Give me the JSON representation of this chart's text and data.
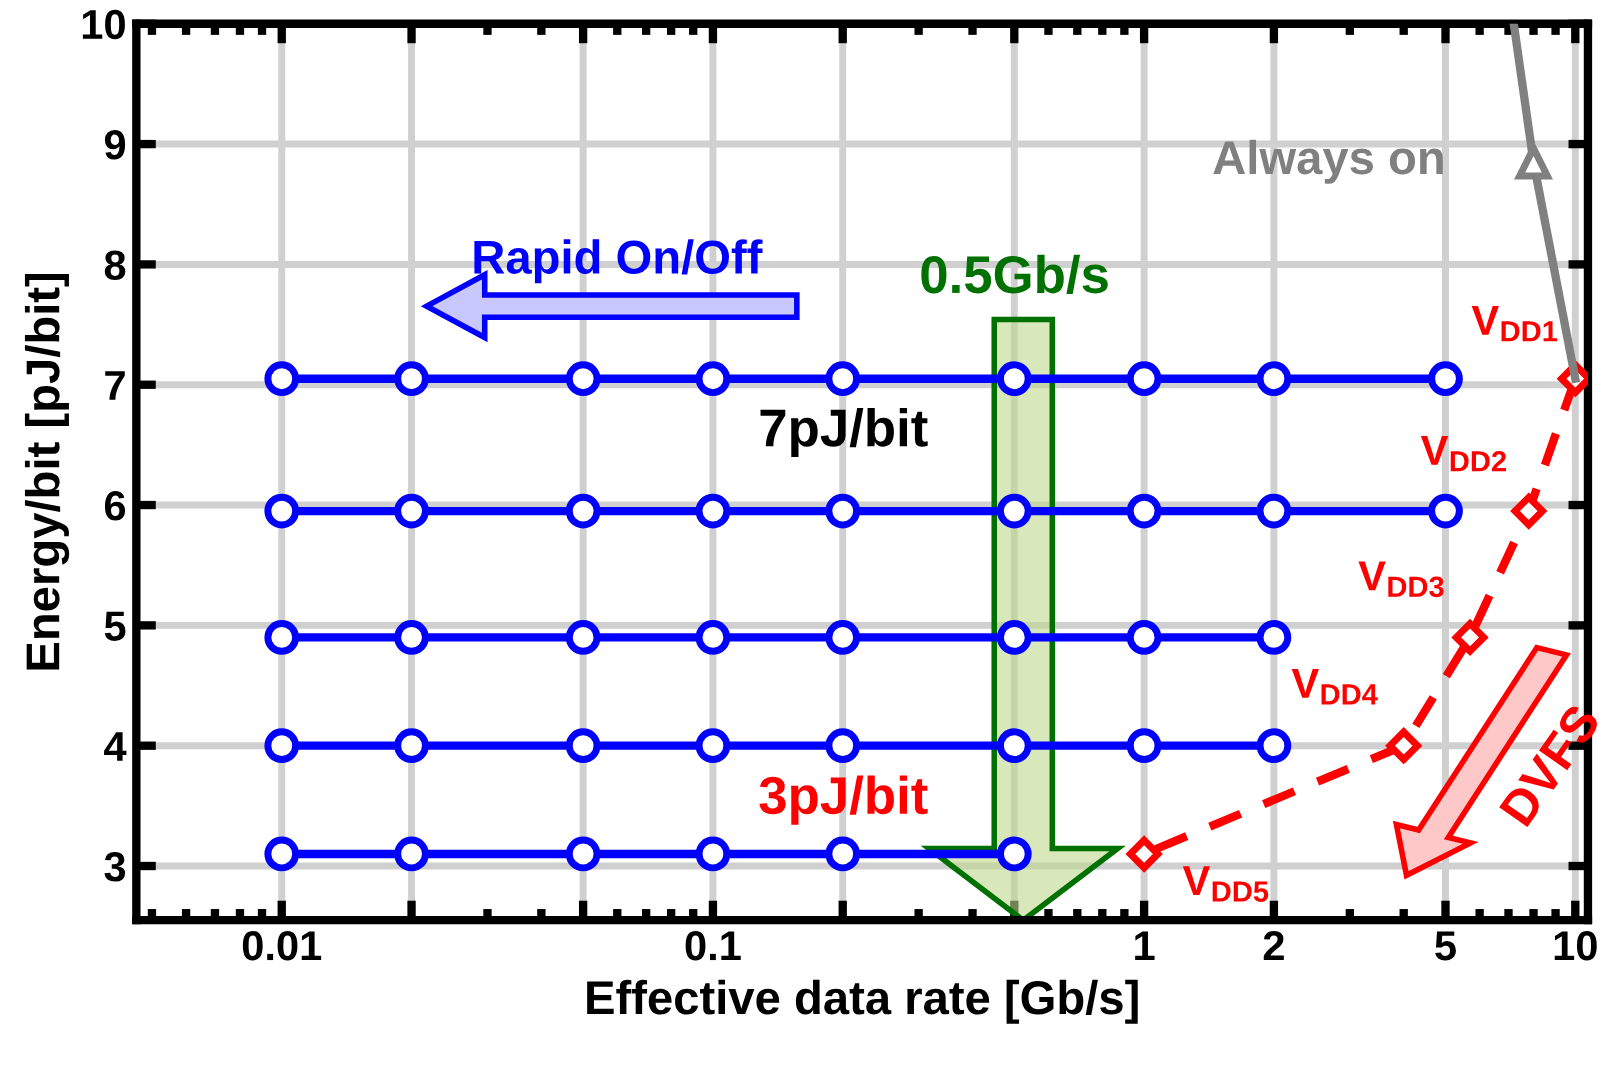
{
  "chart_data": {
    "type": "line",
    "xlabel": "Effective data rate [Gb/s]",
    "ylabel": "Energy/bit [pJ/bit]",
    "log": "x",
    "xlim": [
      0.0046,
      10.7
    ],
    "ylim": [
      2.55,
      10
    ],
    "xticks": [
      0.01,
      {
        "value": 0.02,
        "label": null
      },
      {
        "value": 0.05,
        "label": null
      },
      0.1,
      {
        "value": 0.2,
        "label": null
      },
      {
        "value": 0.5,
        "label": null
      },
      1,
      2,
      5,
      10
    ],
    "yticks": [
      3,
      4,
      5,
      6,
      7,
      8,
      9,
      10
    ],
    "grid": true,
    "marker": "circle",
    "line_style": "solid",
    "series": [
      {
        "color": "#0000ff",
        "x": [
          0.01,
          0.02,
          0.05,
          0.1,
          0.2,
          0.5,
          1,
          2,
          5
        ],
        "values": [
          7.05,
          7.05,
          7.05,
          7.05,
          7.05,
          7.05,
          7.05,
          7.05,
          7.05
        ]
      },
      {
        "color": "#0000ff",
        "x": [
          0.01,
          0.02,
          0.05,
          0.1,
          0.2,
          0.5,
          1,
          2,
          5
        ],
        "values": [
          5.95,
          5.95,
          5.95,
          5.95,
          5.95,
          5.95,
          5.95,
          5.95,
          5.95
        ]
      },
      {
        "color": "#0000ff",
        "x": [
          0.01,
          0.02,
          0.05,
          0.1,
          0.2,
          0.5,
          1,
          2
        ],
        "values": [
          4.9,
          4.9,
          4.9,
          4.9,
          4.9,
          4.9,
          4.9,
          4.9
        ]
      },
      {
        "color": "#0000ff",
        "x": [
          0.01,
          0.02,
          0.05,
          0.1,
          0.2,
          0.5,
          1,
          2
        ],
        "values": [
          4.0,
          4.0,
          4.0,
          4.0,
          4.0,
          4.0,
          4.0,
          4.0
        ]
      },
      {
        "color": "#0000ff",
        "x": [
          0.01,
          0.02,
          0.05,
          0.1,
          0.2,
          0.5
        ],
        "values": [
          3.1,
          3.1,
          3.1,
          3.1,
          3.1,
          3.1
        ]
      },
      {
        "color": "#ff0000",
        "marker": "diamond",
        "line_style": "dashed",
        "x": [
          10,
          7.8,
          5.7,
          4,
          1
        ],
        "values": [
          7.05,
          5.95,
          4.9,
          4.0,
          3.1
        ]
      },
      {
        "color": "#808080",
        "marker": "none",
        "x": [
          7.2,
          8.0,
          10
        ],
        "values": [
          10,
          8.85,
          7.05
        ]
      },
      {
        "color": "#808080",
        "type": "scatter",
        "marker": "triangle",
        "x": [
          8.0
        ],
        "values": [
          8.85
        ]
      }
    ],
    "annotations": [
      "Rapid On/Off",
      "0.5Gb/s",
      "7pJ/bit",
      "3pJ/bit",
      "Always on",
      "V$_{DD1}$",
      "V$_{DD2}$",
      "V$_{DD3}$",
      "V$_{DD4}$",
      "V$_{DD5}$",
      "DVFS"
    ]
  }
}
